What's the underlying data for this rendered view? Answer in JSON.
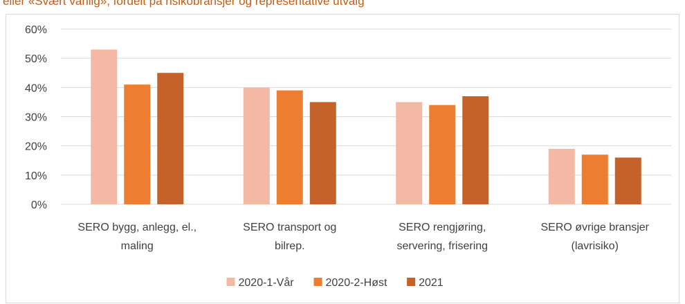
{
  "chart_data": {
    "type": "bar",
    "title": "eller «Svært vanlig», fordelt på risikobransjer og representative utvalg",
    "categories": [
      [
        "SERO bygg, anlegg, el.,",
        "maling"
      ],
      [
        "SERO transport og",
        "bilrep."
      ],
      [
        "SERO rengjøring,",
        "servering, frisering"
      ],
      [
        "SERO øvrige bransjer",
        "(lavrisiko)"
      ]
    ],
    "series": [
      {
        "name": "2020-1-Vår",
        "color": "#f4b9a4",
        "values": [
          53,
          40,
          35,
          19
        ]
      },
      {
        "name": "2020-2-Høst",
        "color": "#ed7d31",
        "values": [
          41,
          39,
          34,
          17
        ]
      },
      {
        "name": "2021",
        "color": "#c5622a",
        "values": [
          45,
          35,
          37,
          16
        ]
      }
    ],
    "ylim": [
      0,
      60
    ],
    "yticks": [
      {
        "value": 0,
        "label": "0%"
      },
      {
        "value": 10,
        "label": "10%"
      },
      {
        "value": 20,
        "label": "20%"
      },
      {
        "value": 30,
        "label": "30%"
      },
      {
        "value": 40,
        "label": "40%"
      },
      {
        "value": 50,
        "label": "50%"
      },
      {
        "value": 60,
        "label": "60%"
      }
    ],
    "grid": true,
    "legend": "bottom"
  }
}
